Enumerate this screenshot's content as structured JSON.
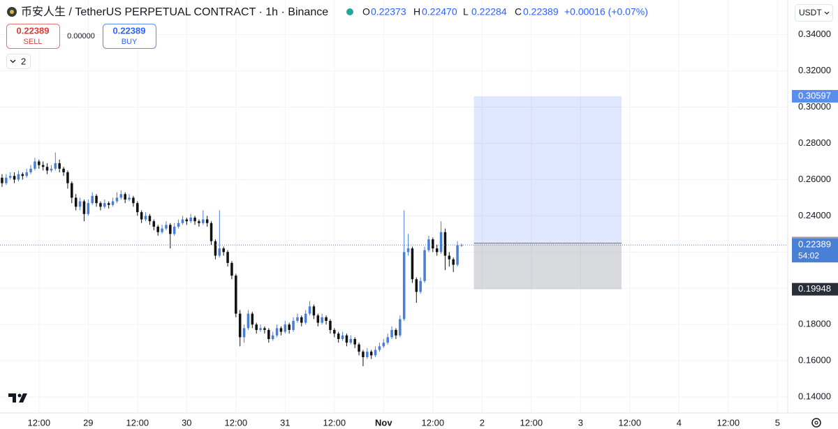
{
  "toolbar": {
    "title": "币安人生 / TetherUS PERPETUAL CONTRACT · 1h · Binance",
    "legend": [
      {
        "label": "O",
        "value": "0.22373"
      },
      {
        "label": "H",
        "value": "0.22470"
      },
      {
        "label": "L",
        "value": "0.22284"
      },
      {
        "label": "C",
        "value": "0.22389"
      }
    ],
    "change": "+0.00016 (+0.07%)",
    "sell_price": "0.22389",
    "sell_label": "SELL",
    "spread": "0.00000",
    "buy_price": "0.22389",
    "buy_label": "BUY",
    "indicators": "2",
    "currency": "USDT"
  },
  "chart_data": {
    "type": "candlestick",
    "up_color": "#4a7fd6",
    "down_color": "#111111",
    "grid": true,
    "xlim": [
      -0.5,
      191.5
    ],
    "xticks": [
      {
        "value": 9,
        "label": "12:00"
      },
      {
        "value": 21,
        "label": "29"
      },
      {
        "value": 33,
        "label": "12:00"
      },
      {
        "value": 45,
        "label": "30"
      },
      {
        "value": 57,
        "label": "12:00"
      },
      {
        "value": 69,
        "label": "31"
      },
      {
        "value": 81,
        "label": "12:00"
      },
      {
        "value": 93,
        "label": "Nov"
      },
      {
        "value": 105,
        "label": "12:00"
      },
      {
        "value": 117,
        "label": "2"
      },
      {
        "value": 129,
        "label": "12:00"
      },
      {
        "value": 141,
        "label": "3"
      },
      {
        "value": 153,
        "label": "12:00"
      },
      {
        "value": 165,
        "label": "4"
      },
      {
        "value": 177,
        "label": "12:00"
      },
      {
        "value": 189,
        "label": "5"
      }
    ],
    "ylim": [
      0.1312,
      0.3591
    ],
    "yticks": [
      {
        "value": 0.14,
        "label": "0.14000"
      },
      {
        "value": 0.16,
        "label": "0.16000"
      },
      {
        "value": 0.18,
        "label": "0.18000"
      },
      {
        "value": 0.2,
        "label": "0.20000"
      },
      {
        "value": 0.22,
        "label": "0.22000"
      },
      {
        "value": 0.24,
        "label": "0.24000"
      },
      {
        "value": 0.26,
        "label": "0.26000"
      },
      {
        "value": 0.28,
        "label": "0.28000"
      },
      {
        "value": 0.3,
        "label": "0.30000"
      },
      {
        "value": 0.32,
        "label": "0.32000"
      },
      {
        "value": 0.34,
        "label": "0.34000"
      }
    ],
    "candles": [
      [
        0.261,
        0.263,
        0.256,
        0.258
      ],
      [
        0.258,
        0.263,
        0.257,
        0.261
      ],
      [
        0.261,
        0.264,
        0.26,
        0.262
      ],
      [
        0.262,
        0.264,
        0.258,
        0.26
      ],
      [
        0.26,
        0.265,
        0.259,
        0.263
      ],
      [
        0.263,
        0.264,
        0.26,
        0.262
      ],
      [
        0.262,
        0.266,
        0.261,
        0.264
      ],
      [
        0.264,
        0.268,
        0.263,
        0.266
      ],
      [
        0.266,
        0.272,
        0.265,
        0.27
      ],
      [
        0.27,
        0.271,
        0.266,
        0.268
      ],
      [
        0.268,
        0.27,
        0.265,
        0.267
      ],
      [
        0.267,
        0.269,
        0.263,
        0.265
      ],
      [
        0.265,
        0.268,
        0.264,
        0.266
      ],
      [
        0.266,
        0.275,
        0.265,
        0.269
      ],
      [
        0.269,
        0.271,
        0.264,
        0.266
      ],
      [
        0.266,
        0.267,
        0.262,
        0.264
      ],
      [
        0.264,
        0.265,
        0.255,
        0.258
      ],
      [
        0.258,
        0.259,
        0.247,
        0.25
      ],
      [
        0.25,
        0.252,
        0.243,
        0.245
      ],
      [
        0.245,
        0.25,
        0.243,
        0.248
      ],
      [
        0.248,
        0.249,
        0.237,
        0.241
      ],
      [
        0.241,
        0.249,
        0.24,
        0.247
      ],
      [
        0.247,
        0.253,
        0.246,
        0.251
      ],
      [
        0.251,
        0.252,
        0.245,
        0.247
      ],
      [
        0.247,
        0.248,
        0.243,
        0.245
      ],
      [
        0.245,
        0.249,
        0.244,
        0.247
      ],
      [
        0.247,
        0.248,
        0.244,
        0.246
      ],
      [
        0.246,
        0.25,
        0.245,
        0.248
      ],
      [
        0.248,
        0.253,
        0.247,
        0.25
      ],
      [
        0.25,
        0.254,
        0.249,
        0.252
      ],
      [
        0.252,
        0.253,
        0.247,
        0.249
      ],
      [
        0.249,
        0.252,
        0.248,
        0.25
      ],
      [
        0.25,
        0.251,
        0.245,
        0.247
      ],
      [
        0.247,
        0.248,
        0.24,
        0.242
      ],
      [
        0.242,
        0.243,
        0.236,
        0.238
      ],
      [
        0.238,
        0.242,
        0.237,
        0.24
      ],
      [
        0.24,
        0.241,
        0.235,
        0.237
      ],
      [
        0.237,
        0.238,
        0.232,
        0.234
      ],
      [
        0.234,
        0.235,
        0.229,
        0.231
      ],
      [
        0.231,
        0.235,
        0.23,
        0.233
      ],
      [
        0.233,
        0.237,
        0.232,
        0.235
      ],
      [
        0.235,
        0.236,
        0.222,
        0.23
      ],
      [
        0.23,
        0.236,
        0.229,
        0.234
      ],
      [
        0.234,
        0.238,
        0.233,
        0.236
      ],
      [
        0.236,
        0.24,
        0.235,
        0.238
      ],
      [
        0.238,
        0.239,
        0.235,
        0.237
      ],
      [
        0.237,
        0.241,
        0.236,
        0.239
      ],
      [
        0.239,
        0.24,
        0.235,
        0.237
      ],
      [
        0.237,
        0.238,
        0.234,
        0.236
      ],
      [
        0.236,
        0.243,
        0.235,
        0.238
      ],
      [
        0.238,
        0.24,
        0.234,
        0.236
      ],
      [
        0.236,
        0.237,
        0.224,
        0.226
      ],
      [
        0.226,
        0.227,
        0.216,
        0.218
      ],
      [
        0.218,
        0.243,
        0.217,
        0.222
      ],
      [
        0.222,
        0.223,
        0.218,
        0.22
      ],
      [
        0.22,
        0.221,
        0.212,
        0.214
      ],
      [
        0.214,
        0.215,
        0.205,
        0.207
      ],
      [
        0.207,
        0.208,
        0.184,
        0.186
      ],
      [
        0.186,
        0.188,
        0.168,
        0.173
      ],
      [
        0.173,
        0.18,
        0.17,
        0.178
      ],
      [
        0.178,
        0.188,
        0.177,
        0.186
      ],
      [
        0.186,
        0.187,
        0.178,
        0.18
      ],
      [
        0.18,
        0.181,
        0.175,
        0.177
      ],
      [
        0.177,
        0.18,
        0.176,
        0.178
      ],
      [
        0.178,
        0.179,
        0.175,
        0.177
      ],
      [
        0.177,
        0.178,
        0.17,
        0.172
      ],
      [
        0.172,
        0.176,
        0.171,
        0.174
      ],
      [
        0.174,
        0.18,
        0.173,
        0.178
      ],
      [
        0.178,
        0.179,
        0.174,
        0.176
      ],
      [
        0.176,
        0.182,
        0.175,
        0.18
      ],
      [
        0.18,
        0.181,
        0.175,
        0.177
      ],
      [
        0.177,
        0.184,
        0.176,
        0.182
      ],
      [
        0.182,
        0.186,
        0.181,
        0.184
      ],
      [
        0.184,
        0.185,
        0.179,
        0.181
      ],
      [
        0.181,
        0.188,
        0.18,
        0.186
      ],
      [
        0.186,
        0.193,
        0.185,
        0.19
      ],
      [
        0.19,
        0.191,
        0.183,
        0.185
      ],
      [
        0.185,
        0.186,
        0.179,
        0.181
      ],
      [
        0.181,
        0.186,
        0.18,
        0.184
      ],
      [
        0.184,
        0.185,
        0.18,
        0.182
      ],
      [
        0.182,
        0.183,
        0.175,
        0.177
      ],
      [
        0.177,
        0.178,
        0.173,
        0.175
      ],
      [
        0.175,
        0.176,
        0.17,
        0.172
      ],
      [
        0.172,
        0.176,
        0.171,
        0.174
      ],
      [
        0.174,
        0.175,
        0.168,
        0.17
      ],
      [
        0.17,
        0.174,
        0.169,
        0.172
      ],
      [
        0.172,
        0.173,
        0.167,
        0.169
      ],
      [
        0.169,
        0.17,
        0.163,
        0.165
      ],
      [
        0.165,
        0.166,
        0.157,
        0.162
      ],
      [
        0.162,
        0.167,
        0.161,
        0.165
      ],
      [
        0.165,
        0.166,
        0.161,
        0.163
      ],
      [
        0.163,
        0.168,
        0.162,
        0.166
      ],
      [
        0.166,
        0.17,
        0.165,
        0.168
      ],
      [
        0.168,
        0.172,
        0.167,
        0.17
      ],
      [
        0.17,
        0.175,
        0.169,
        0.173
      ],
      [
        0.173,
        0.179,
        0.172,
        0.177
      ],
      [
        0.177,
        0.178,
        0.172,
        0.174
      ],
      [
        0.174,
        0.185,
        0.173,
        0.183
      ],
      [
        0.183,
        0.243,
        0.182,
        0.22
      ],
      [
        0.22,
        0.23,
        0.218,
        0.222
      ],
      [
        0.222,
        0.223,
        0.203,
        0.205
      ],
      [
        0.205,
        0.206,
        0.192,
        0.198
      ],
      [
        0.198,
        0.206,
        0.197,
        0.204
      ],
      [
        0.204,
        0.223,
        0.203,
        0.221
      ],
      [
        0.221,
        0.229,
        0.22,
        0.227
      ],
      [
        0.227,
        0.228,
        0.22,
        0.222
      ],
      [
        0.222,
        0.224,
        0.218,
        0.22
      ],
      [
        0.22,
        0.237,
        0.219,
        0.231
      ],
      [
        0.231,
        0.233,
        0.21,
        0.218
      ],
      [
        0.218,
        0.22,
        0.212,
        0.216
      ],
      [
        0.216,
        0.217,
        0.209,
        0.213
      ],
      [
        0.213,
        0.226,
        0.212,
        0.22373
      ],
      [
        0.22373,
        0.2247,
        0.22284,
        0.22389
      ]
    ],
    "last_price": 0.22389,
    "countdown": "54:02",
    "position": {
      "start": 115,
      "end": 151,
      "entry": 0.22495,
      "target": 0.30597,
      "stop": 0.19948
    }
  }
}
